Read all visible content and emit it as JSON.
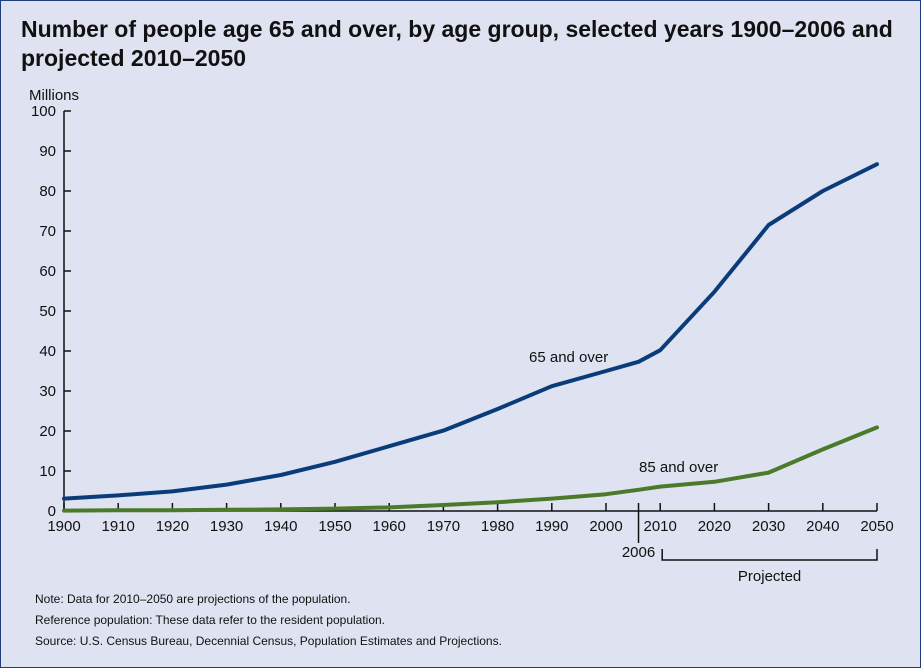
{
  "title": "Number of people age 65 and over, by age group, selected years 1900–2006 and projected 2010–2050",
  "chart_data": {
    "type": "line",
    "ylabel": "Millions",
    "ylim": [
      0,
      100
    ],
    "yticks": [
      "0",
      "10",
      "20",
      "30",
      "40",
      "50",
      "60",
      "70",
      "80",
      "90",
      "100"
    ],
    "xlim": [
      1900,
      2050
    ],
    "xticks": [
      "1900",
      "1910",
      "1920",
      "1930",
      "1940",
      "1950",
      "1960",
      "1970",
      "1980",
      "1990",
      "2000",
      "2010",
      "2020",
      "2030",
      "2040",
      "2050"
    ],
    "x_extra_tick": "2006",
    "projected_label": "Projected",
    "grid": false,
    "series": [
      {
        "name": "65 and over",
        "color": "#0b3c7a",
        "x": [
          1900,
          1910,
          1920,
          1930,
          1940,
          1950,
          1960,
          1970,
          1980,
          1990,
          2000,
          2006,
          2010,
          2020,
          2030,
          2040,
          2050
        ],
        "values": [
          3.1,
          3.9,
          4.9,
          6.6,
          9.0,
          12.3,
          16.2,
          20.1,
          25.5,
          31.2,
          35.0,
          37.3,
          40.2,
          54.8,
          71.5,
          80.0,
          86.7
        ]
      },
      {
        "name": "85 and over",
        "color": "#4a7a2a",
        "x": [
          1900,
          1910,
          1920,
          1930,
          1940,
          1950,
          1960,
          1970,
          1980,
          1990,
          2000,
          2006,
          2010,
          2020,
          2030,
          2040,
          2050
        ],
        "values": [
          0.1,
          0.2,
          0.2,
          0.3,
          0.4,
          0.6,
          0.9,
          1.5,
          2.2,
          3.1,
          4.2,
          5.3,
          6.1,
          7.3,
          9.6,
          15.4,
          20.9
        ]
      }
    ]
  },
  "notes": [
    "Note:  Data for 2010–2050 are projections of the population.",
    "Reference population: These data refer to the resident population.",
    "Source:  U.S. Census Bureau, Decennial Census,  Population Estimates and Projections."
  ]
}
